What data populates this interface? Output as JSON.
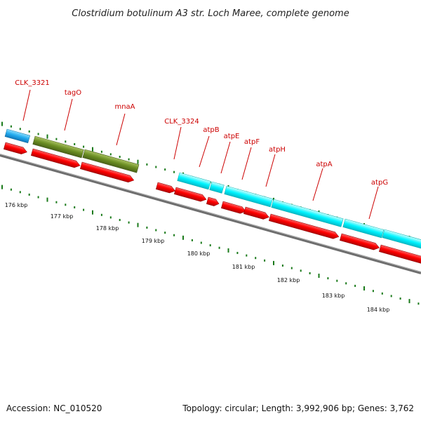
{
  "title": "Clostridium botulinum A3 str. Loch Maree, complete genome",
  "accession": "Accession: NC_010520",
  "topology_info": "Topology: circular; Length: 3,992,906 bp; Genes: 3,762",
  "gene_labels": [
    "CLK_3321",
    "tagO",
    "mnaA",
    "CLK_3324",
    "atpB",
    "atpE",
    "atpF",
    "atpH",
    "atpA",
    "atpG"
  ],
  "tick_labels": [
    "176 kbp",
    "177 kbp",
    "178 kbp",
    "179 kbp",
    "180 kbp",
    "181 kbp",
    "182 kbp",
    "183 kbp",
    "184 kbp"
  ],
  "colors": {
    "cds_forward": "#ff0000",
    "blue_feature": "#22aaee",
    "olive_feature": "#6b8e23",
    "cyan_feature": "#00ffff",
    "backbone": "#808080",
    "tick": "#1a7a1a",
    "label": "#cc0000"
  }
}
